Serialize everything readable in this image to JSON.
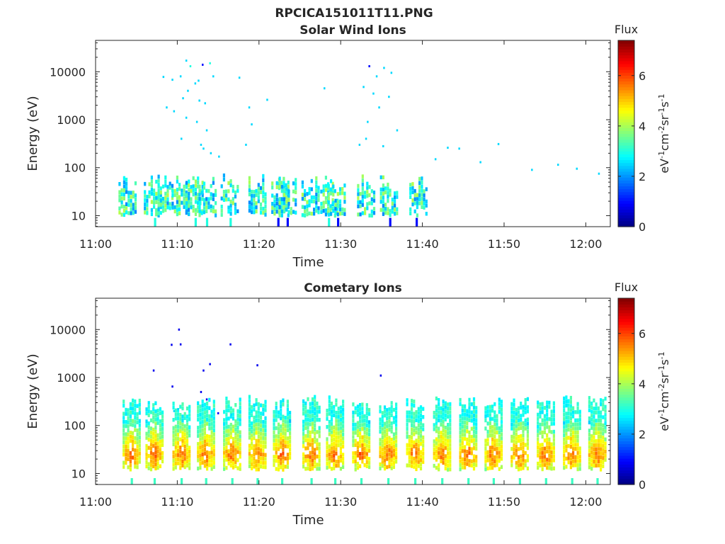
{
  "figure_title": "RPCICA151011T11.PNG",
  "colorbar": {
    "title": "Flux",
    "ticks": [
      0,
      2,
      4,
      6
    ],
    "range": [
      0,
      7.4
    ],
    "label_base": "eV",
    "label_parts": [
      {
        "t": "eV",
        "sup": false
      },
      {
        "t": "-1",
        "sup": true
      },
      {
        "t": "cm",
        "sup": false
      },
      {
        "t": "-2",
        "sup": true
      },
      {
        "t": "sr",
        "sup": false
      },
      {
        "t": "-1",
        "sup": true
      },
      {
        "t": "s",
        "sup": false
      },
      {
        "t": "-1",
        "sup": true
      }
    ]
  },
  "chart_data": [
    {
      "type": "heatmap",
      "title": "Solar Wind Ions",
      "xlabel": "Time",
      "ylabel": "Energy (eV)",
      "y_scale": "log",
      "x_range_minutes": [
        0,
        63
      ],
      "y_range": [
        5.9,
        45000
      ],
      "x_ticks": [
        {
          "m": 0,
          "label": "11:00"
        },
        {
          "m": 10,
          "label": "11:10"
        },
        {
          "m": 20,
          "label": "11:20"
        },
        {
          "m": 30,
          "label": "11:30"
        },
        {
          "m": 40,
          "label": "11:40"
        },
        {
          "m": 50,
          "label": "11:50"
        },
        {
          "m": 60,
          "label": "12:00"
        }
      ],
      "y_ticks": [
        {
          "v": 10,
          "label": "10"
        },
        {
          "v": 100,
          "label": "100"
        },
        {
          "v": 1000,
          "label": "1000"
        },
        {
          "v": 10000,
          "label": "10000"
        }
      ],
      "bursts_minutes": [
        3.7,
        6.8,
        8.2,
        10.2,
        11.9,
        13.5,
        16.2,
        19.6,
        22.4,
        23.3,
        26.1,
        28.4,
        29.3,
        32.9,
        35.7,
        39.3
      ],
      "burst_flux_center": 3.0,
      "burst_energy_range": [
        10,
        70
      ],
      "sparse_points": [
        [
          13.0,
          14000,
          1.0
        ],
        [
          11.5,
          13000,
          3.0
        ],
        [
          13.9,
          15000,
          3.0
        ],
        [
          11.0,
          17000,
          2.5
        ],
        [
          14.3,
          8000,
          2.5
        ],
        [
          17.5,
          7500,
          2.5
        ],
        [
          8.2,
          7800,
          2.5
        ],
        [
          9.3,
          6800,
          2.5
        ],
        [
          10.3,
          8000,
          2.5
        ],
        [
          12.1,
          5700,
          2.5
        ],
        [
          12.5,
          6500,
          2.5
        ],
        [
          11.2,
          4000,
          2.5
        ],
        [
          10.6,
          2800,
          2.5
        ],
        [
          12.6,
          2500,
          2.5
        ],
        [
          13.3,
          2200,
          2.5
        ],
        [
          8.6,
          1800,
          2.5
        ],
        [
          9.5,
          1500,
          2.5
        ],
        [
          11.0,
          1100,
          2.5
        ],
        [
          12.3,
          900,
          2.5
        ],
        [
          13.5,
          600,
          2.5
        ],
        [
          10.4,
          400,
          2.5
        ],
        [
          12.8,
          300,
          2.5
        ],
        [
          13.1,
          250,
          2.5
        ],
        [
          14.0,
          200,
          2.5
        ],
        [
          15.0,
          170,
          2.5
        ],
        [
          18.3,
          300,
          2.5
        ],
        [
          19.0,
          800,
          2.5
        ],
        [
          20.9,
          2600,
          2.5
        ],
        [
          18.7,
          1800,
          2.5
        ],
        [
          27.9,
          4500,
          2.5
        ],
        [
          33.4,
          13000,
          1.0
        ],
        [
          35.2,
          12000,
          2.5
        ],
        [
          36.1,
          9500,
          2.5
        ],
        [
          34.3,
          8000,
          2.5
        ],
        [
          32.7,
          4800,
          2.5
        ],
        [
          33.9,
          3500,
          2.5
        ],
        [
          35.8,
          3000,
          2.5
        ],
        [
          34.6,
          1800,
          2.5
        ],
        [
          33.2,
          900,
          2.5
        ],
        [
          36.8,
          600,
          2.5
        ],
        [
          33.0,
          400,
          2.5
        ],
        [
          32.2,
          300,
          2.5
        ],
        [
          35.1,
          280,
          2.5
        ],
        [
          44.4,
          250,
          2.5
        ],
        [
          49.2,
          310,
          2.5
        ],
        [
          56.5,
          115,
          2.5
        ],
        [
          61.5,
          75,
          2.5
        ],
        [
          53.3,
          90,
          2.5
        ],
        [
          58.8,
          95,
          2.5
        ],
        [
          47.0,
          130,
          2.5
        ],
        [
          41.5,
          150,
          2.5
        ],
        [
          43.0,
          260,
          2.5
        ]
      ]
    },
    {
      "type": "heatmap",
      "title": "Cometary Ions",
      "xlabel": "Time",
      "ylabel": "Energy (eV)",
      "y_scale": "log",
      "x_range_minutes": [
        0,
        63
      ],
      "y_range": [
        5.9,
        45000
      ],
      "x_ticks": [
        {
          "m": 0,
          "label": "11:00"
        },
        {
          "m": 10,
          "label": "11:10"
        },
        {
          "m": 20,
          "label": "11:20"
        },
        {
          "m": 30,
          "label": "11:30"
        },
        {
          "m": 40,
          "label": "11:40"
        },
        {
          "m": 50,
          "label": "11:50"
        },
        {
          "m": 60,
          "label": "12:00"
        }
      ],
      "y_ticks": [
        {
          "v": 10,
          "label": "10"
        },
        {
          "v": 100,
          "label": "100"
        },
        {
          "v": 1000,
          "label": "1000"
        },
        {
          "v": 10000,
          "label": "10000"
        }
      ],
      "bursts_minutes": [
        4.2,
        7.0,
        10.3,
        13.3,
        16.5,
        19.6,
        22.6,
        26.2,
        29.1,
        32.3,
        35.6,
        38.9,
        42.2,
        45.4,
        48.5,
        51.7,
        54.9,
        58.1,
        61.2
      ],
      "burst_flux_center": 5.8,
      "burst_energy_range": [
        12,
        400
      ],
      "sparse_points": [
        [
          10.1,
          10000,
          0.8
        ],
        [
          9.2,
          4800,
          0.8
        ],
        [
          10.3,
          4900,
          0.8
        ],
        [
          16.4,
          4900,
          0.8
        ],
        [
          7.0,
          1400,
          0.8
        ],
        [
          13.1,
          1400,
          0.8
        ],
        [
          13.9,
          1900,
          0.8
        ],
        [
          19.7,
          1800,
          0.8
        ],
        [
          34.8,
          1100,
          0.8
        ],
        [
          9.3,
          650,
          0.8
        ],
        [
          12.8,
          500,
          0.8
        ],
        [
          13.5,
          350,
          0.8
        ],
        [
          14.9,
          180,
          1.0
        ],
        [
          9.5,
          200,
          2.5
        ],
        [
          10.0,
          220,
          2.5
        ],
        [
          16.5,
          170,
          2.5
        ]
      ]
    }
  ]
}
